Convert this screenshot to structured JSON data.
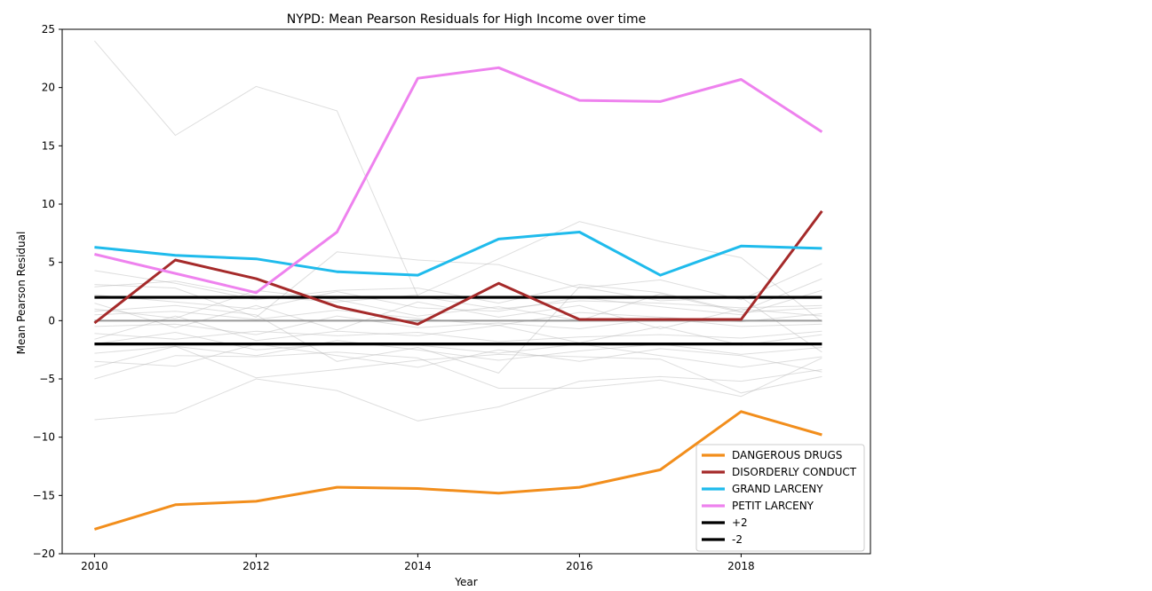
{
  "chart_data": {
    "type": "line",
    "title": "NYPD: Mean Pearson Residuals for High Income over time",
    "xlabel": "Year",
    "ylabel": "Mean Pearson Residual",
    "xlim": [
      2009.6,
      2019.6
    ],
    "ylim": [
      -20,
      25
    ],
    "xticks": [
      2010,
      2012,
      2014,
      2016,
      2018
    ],
    "yticks": [
      -20,
      -15,
      -10,
      -5,
      0,
      5,
      10,
      15,
      20,
      25
    ],
    "x": [
      2010,
      2011,
      2012,
      2013,
      2014,
      2015,
      2016,
      2017,
      2018,
      2019
    ],
    "grid": false,
    "legend_position": "bottom-right",
    "series": [
      {
        "name": "DANGEROUS DRUGS",
        "color": "#f28e1c",
        "values": [
          -17.9,
          -15.8,
          -15.5,
          -14.3,
          -14.4,
          -14.8,
          -14.3,
          -12.8,
          -7.8,
          -9.8
        ]
      },
      {
        "name": "DISORDERLY CONDUCT",
        "color": "#a52a2a",
        "values": [
          -0.2,
          5.2,
          3.6,
          1.2,
          -0.3,
          3.2,
          0.1,
          0.1,
          0.1,
          9.4
        ]
      },
      {
        "name": "GRAND LARCENY",
        "color": "#1fbbec",
        "values": [
          6.3,
          5.6,
          5.3,
          4.2,
          3.9,
          7.0,
          7.6,
          3.9,
          6.4,
          6.2
        ]
      },
      {
        "name": "PETIT LARCENY",
        "color": "#ee82ee",
        "values": [
          5.7,
          null,
          2.4,
          7.6,
          20.8,
          21.7,
          18.9,
          18.8,
          20.7,
          16.2
        ]
      }
    ],
    "reference_lines": [
      {
        "name": "+2",
        "value": 2,
        "color": "#000000"
      },
      {
        "name": "-2",
        "value": -2,
        "color": "#000000"
      },
      {
        "name": "",
        "value": 0,
        "color": "#999999"
      }
    ],
    "background_series": [
      [
        24.0,
        15.9,
        20.1,
        18.0,
        2.1,
        1.0,
        1.7,
        1.5,
        1.1,
        1.3
      ],
      [
        -8.5,
        -7.9,
        -5.0,
        -6.0,
        -8.6,
        -7.4,
        -5.2,
        -4.8,
        -5.2,
        -4.2
      ],
      [
        -5.0,
        -3.0,
        -3.1,
        -2.7,
        -3.2,
        -5.8,
        -5.8,
        -5.1,
        -6.5,
        -3.2
      ],
      [
        -4.0,
        -2.2,
        -4.9,
        -4.2,
        -3.4,
        -2.9,
        -3.1,
        -3.3,
        -6.2,
        -4.8
      ],
      [
        3.1,
        2.8,
        0.3,
        5.9,
        5.2,
        4.8,
        2.8,
        3.5,
        1.8,
        4.9
      ],
      [
        2.9,
        3.4,
        2.1,
        1.6,
        2.2,
        5.3,
        8.5,
        6.8,
        5.4,
        -0.1
      ],
      [
        0.8,
        1.3,
        0.5,
        -3.5,
        -2.3,
        -4.5,
        2.9,
        1.7,
        2.0,
        -2.7
      ],
      [
        -2.0,
        -1.0,
        -2.5,
        -2.0,
        -2.1,
        -2.8,
        -2.0,
        -3.0,
        -4.0,
        -3.1
      ],
      [
        1.5,
        -0.6,
        1.3,
        -0.8,
        1.6,
        0.3,
        1.3,
        -0.7,
        1.0,
        0.4
      ],
      [
        -1.1,
        -1.6,
        -0.9,
        -1.3,
        -1.0,
        -1.8,
        -1.4,
        -1.2,
        -1.5,
        -0.9
      ],
      [
        0.5,
        0.8,
        0.1,
        0.9,
        0.2,
        -0.4,
        0.7,
        0.3,
        -0.1,
        0.6
      ],
      [
        -0.5,
        -0.3,
        -1.2,
        0.4,
        -0.6,
        -0.2,
        -0.7,
        0.2,
        -0.5,
        -0.3
      ],
      [
        2.2,
        1.6,
        1.0,
        2.5,
        1.1,
        0.8,
        2.0,
        1.2,
        0.5,
        2.6
      ],
      [
        -2.8,
        -2.2,
        -3.0,
        -1.7,
        -2.5,
        -3.4,
        -2.6,
        -2.0,
        -2.9,
        -2.3
      ],
      [
        1.0,
        0.2,
        2.6,
        1.8,
        0.4,
        1.2,
        0.0,
        2.3,
        0.7,
        1.1
      ],
      [
        -3.5,
        -3.9,
        -2.0,
        -3.0,
        -4.0,
        -2.5,
        -3.5,
        -2.4,
        -3.0,
        -4.4
      ],
      [
        4.3,
        3.2,
        1.8,
        2.6,
        2.8,
        1.5,
        3.1,
        2.4,
        0.8,
        3.6
      ],
      [
        -1.6,
        0.4,
        -1.7,
        -0.9,
        -1.3,
        -0.4,
        -1.9,
        -0.5,
        -2.1,
        -1.2
      ]
    ]
  }
}
